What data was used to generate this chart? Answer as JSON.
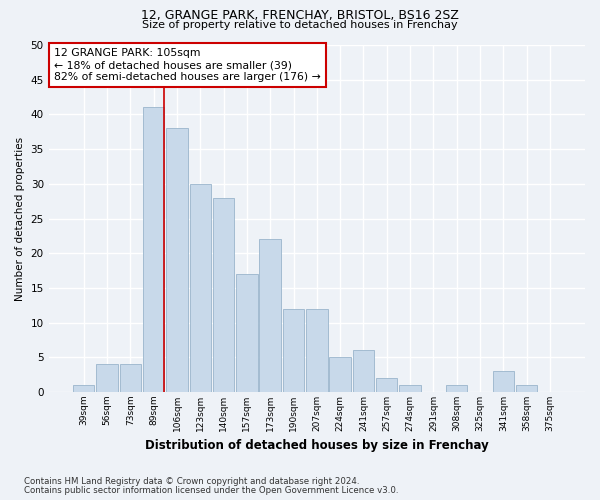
{
  "title1": "12, GRANGE PARK, FRENCHAY, BRISTOL, BS16 2SZ",
  "title2": "Size of property relative to detached houses in Frenchay",
  "xlabel": "Distribution of detached houses by size in Frenchay",
  "ylabel": "Number of detached properties",
  "categories": [
    "39sqm",
    "56sqm",
    "73sqm",
    "89sqm",
    "106sqm",
    "123sqm",
    "140sqm",
    "157sqm",
    "173sqm",
    "190sqm",
    "207sqm",
    "224sqm",
    "241sqm",
    "257sqm",
    "274sqm",
    "291sqm",
    "308sqm",
    "325sqm",
    "341sqm",
    "358sqm",
    "375sqm"
  ],
  "values": [
    1,
    4,
    4,
    41,
    38,
    30,
    28,
    17,
    22,
    12,
    12,
    5,
    6,
    2,
    1,
    0,
    1,
    0,
    3,
    1,
    0
  ],
  "bar_color": "#c8d9ea",
  "bar_edge_color": "#9ab5cc",
  "marker_bin_index": 3,
  "marker_color": "#cc0000",
  "annotation_text": "12 GRANGE PARK: 105sqm\n← 18% of detached houses are smaller (39)\n82% of semi-detached houses are larger (176) →",
  "annotation_box_color": "#ffffff",
  "annotation_box_edge": "#cc0000",
  "ylim": [
    0,
    50
  ],
  "yticks": [
    0,
    5,
    10,
    15,
    20,
    25,
    30,
    35,
    40,
    45,
    50
  ],
  "footnote1": "Contains HM Land Registry data © Crown copyright and database right 2024.",
  "footnote2": "Contains public sector information licensed under the Open Government Licence v3.0.",
  "bg_color": "#eef2f7",
  "plot_bg_color": "#eef2f7",
  "grid_color": "#ffffff"
}
